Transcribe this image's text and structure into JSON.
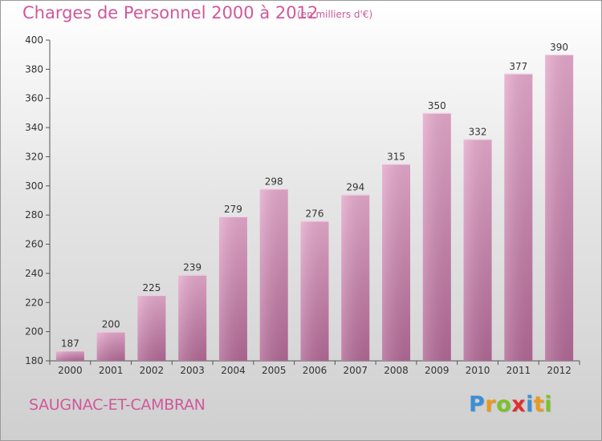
{
  "title": "Charges de Personnel 2000 à 2012",
  "subtitle": "(en milliers d'€)",
  "commune": "SAUGNAC-ET-CAMBRAN",
  "logo": {
    "letters": [
      {
        "char": "P",
        "color": "#3a8fd6"
      },
      {
        "char": "r",
        "color": "#e89a20"
      },
      {
        "char": "o",
        "color": "#7cc12c"
      },
      {
        "char": "x",
        "color": "#e0302c"
      },
      {
        "char": "i",
        "color": "#3a8fd6"
      },
      {
        "char": "t",
        "color": "#e89a20"
      },
      {
        "char": "i",
        "color": "#7cc12c"
      }
    ]
  },
  "colors": {
    "accent": "#d0589a",
    "bar_light": "#e5a9cc",
    "bar_dark": "#b26996",
    "text": "#333333"
  },
  "chart_data": {
    "type": "bar",
    "title": "Charges de Personnel 2000 à 2012",
    "subtitle": "(en milliers d'€)",
    "categories": [
      "2000",
      "2001",
      "2002",
      "2003",
      "2004",
      "2005",
      "2006",
      "2007",
      "2008",
      "2009",
      "2010",
      "2011",
      "2012"
    ],
    "values": [
      187,
      200,
      225,
      239,
      279,
      298,
      276,
      294,
      315,
      350,
      332,
      377,
      390
    ],
    "ylim": [
      180,
      400
    ],
    "yticks": [
      180,
      200,
      220,
      240,
      260,
      280,
      300,
      320,
      340,
      360,
      380,
      400
    ],
    "grid": false,
    "data_labels": true
  }
}
